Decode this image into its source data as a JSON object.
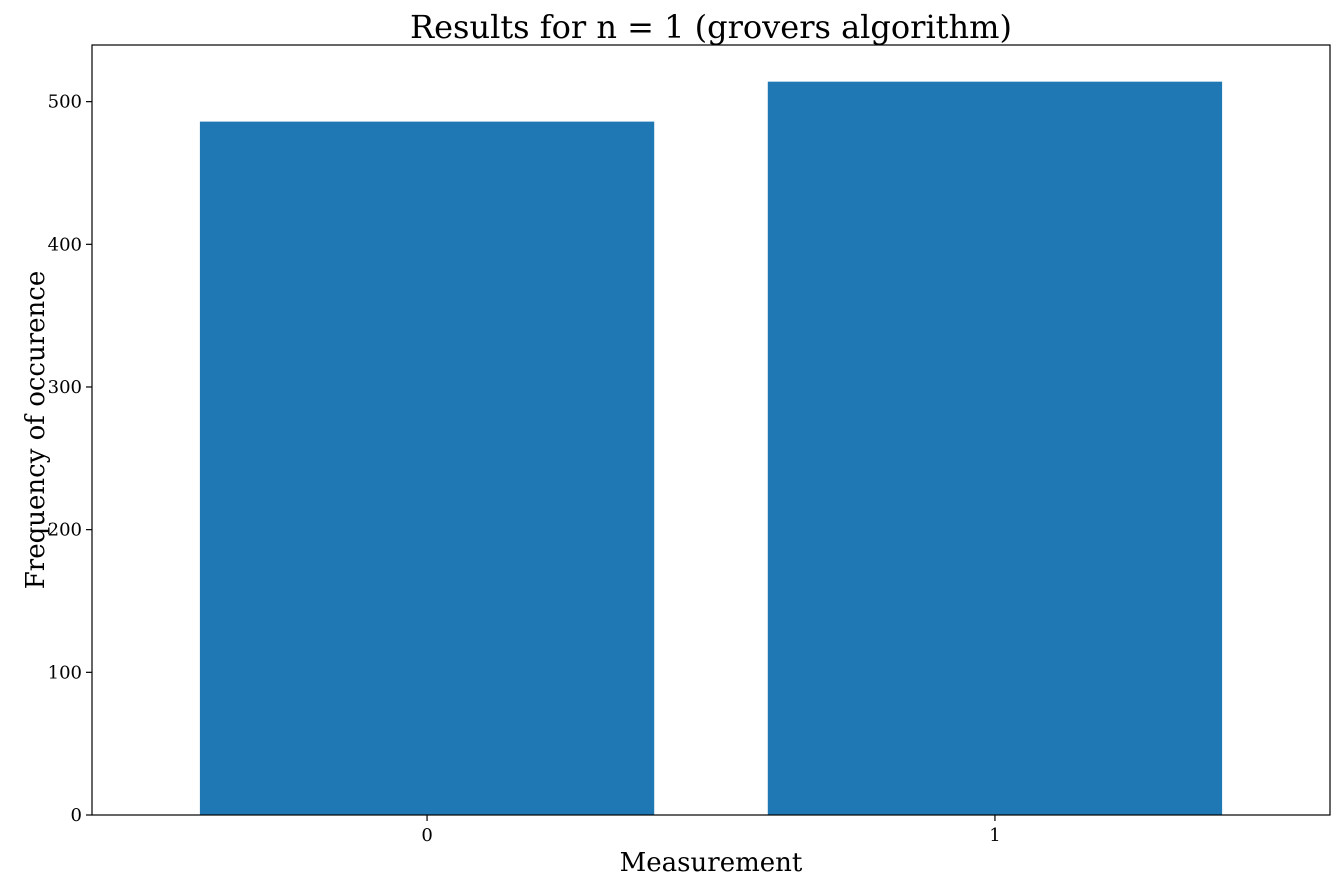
{
  "chart_data": {
    "type": "bar",
    "title": "Results for n = 1 (grovers algorithm)",
    "xlabel": "Measurement",
    "ylabel": "Frequency of occurence",
    "categories": [
      "0",
      "1"
    ],
    "values": [
      486,
      514
    ],
    "ylim": [
      0,
      539.7
    ],
    "yticks": [
      0,
      100,
      200,
      300,
      400,
      500
    ],
    "ytick_labels": [
      "0",
      "100",
      "200",
      "300",
      "400",
      "500"
    ],
    "bar_color": "#1f77b4",
    "grid": false
  }
}
